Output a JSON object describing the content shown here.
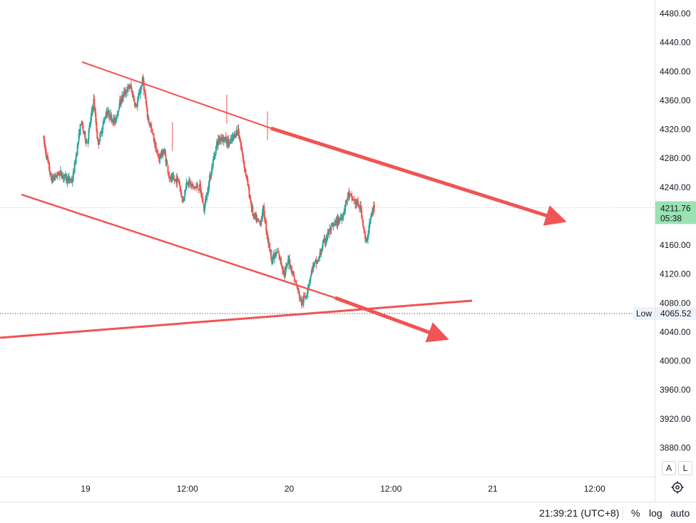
{
  "chart_data": {
    "type": "candlestick",
    "y_axis": {
      "range": [
        3850,
        4500
      ],
      "tick_labels": [
        "4480.00",
        "4440.00",
        "4400.00",
        "4360.00",
        "4320.00",
        "4280.00",
        "4240.00",
        "4200.00",
        "4160.00",
        "4120.00",
        "4080.00",
        "4040.00",
        "4000.00",
        "3960.00",
        "3920.00",
        "3880.00"
      ],
      "tick_values": [
        4480,
        4440,
        4400,
        4360,
        4320,
        4280,
        4240,
        4200,
        4160,
        4120,
        4080,
        4040,
        4000,
        3960,
        3920,
        3880
      ]
    },
    "x_axis": {
      "tick_labels": [
        "19",
        "12:00",
        "20",
        "12:00",
        "21",
        "12:00"
      ],
      "tick_hours": [
        0,
        12,
        24,
        36,
        48,
        60
      ],
      "range_hours": [
        -5,
        34.5
      ]
    },
    "price_path_hours": [
      -5,
      -4,
      -3,
      -2,
      -1.5,
      -0.5,
      0.2,
      1,
      1.5,
      2.5,
      3.5,
      4,
      4.6,
      5.3,
      6,
      6.8,
      7.3,
      8,
      8.6,
      9.3,
      10,
      11,
      11.5,
      12,
      12.7,
      13.5,
      14,
      14.8,
      15.5,
      16,
      17,
      18,
      18.6,
      19.2,
      19.8,
      20.6,
      21,
      21.5,
      22,
      22.7,
      23.5,
      24,
      25,
      25.5,
      26,
      26.8,
      27.5,
      28,
      28.8,
      29.5,
      30.3,
      31,
      31.8,
      32.5,
      33.1,
      33.5,
      34
    ],
    "price_path_values": [
      4310,
      4250,
      4260,
      4250,
      4250,
      4330,
      4300,
      4360,
      4300,
      4345,
      4330,
      4355,
      4370,
      4380,
      4350,
      4390,
      4340,
      4310,
      4280,
      4290,
      4250,
      4250,
      4220,
      4250,
      4240,
      4240,
      4210,
      4260,
      4300,
      4310,
      4300,
      4320,
      4280,
      4240,
      4200,
      4190,
      4210,
      4170,
      4140,
      4150,
      4120,
      4140,
      4100,
      4080,
      4090,
      4130,
      4140,
      4160,
      4180,
      4190,
      4200,
      4230,
      4220,
      4210,
      4160,
      4190,
      4211.76
    ],
    "current_price": {
      "value": "4211.76",
      "countdown": "05:38",
      "numeric": 4211.76
    },
    "low_marker": {
      "label": "Low",
      "value": "4065.52",
      "numeric": 4065.52
    },
    "colors": {
      "up": "#26a69a",
      "down": "#ef5350",
      "drawing": "#f05454",
      "price_label_bg": "#9be2b3",
      "low_label_bg": "#eef3fb",
      "grid_dotted": "#b2b5be"
    }
  },
  "bottom_bar": {
    "clock": "21:39:21 (UTC+8)",
    "percent": "%",
    "log": "log",
    "auto": "auto"
  },
  "scale_buttons": {
    "a": "A",
    "l": "L"
  },
  "icons": {
    "settings": "gear-icon"
  }
}
